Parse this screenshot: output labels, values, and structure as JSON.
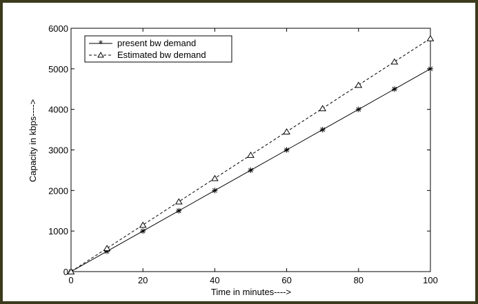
{
  "chart_data": {
    "type": "line",
    "xlabel": "Time in minutes---->",
    "ylabel": "Capacity in kbps---->",
    "xlim": [
      0,
      100
    ],
    "ylim": [
      0,
      6000
    ],
    "xticks": [
      0,
      20,
      40,
      60,
      80,
      100
    ],
    "yticks": [
      0,
      1000,
      2000,
      3000,
      4000,
      5000,
      6000
    ],
    "grid": false,
    "legend_position": "top-left",
    "x": [
      0,
      10,
      20,
      30,
      40,
      50,
      60,
      70,
      80,
      90,
      100
    ],
    "series": [
      {
        "name": "present bw demand",
        "line_style": "solid",
        "marker": "asterisk",
        "color": "#000000",
        "values": [
          0,
          500,
          1000,
          1500,
          2000,
          2500,
          3000,
          3500,
          4000,
          4500,
          5000
        ]
      },
      {
        "name": "Estimated bw demand",
        "line_style": "dashed",
        "marker": "triangle",
        "color": "#000000",
        "values": [
          0,
          575,
          1150,
          1725,
          2300,
          2875,
          3450,
          4025,
          4600,
          5175,
          5750
        ]
      }
    ]
  }
}
